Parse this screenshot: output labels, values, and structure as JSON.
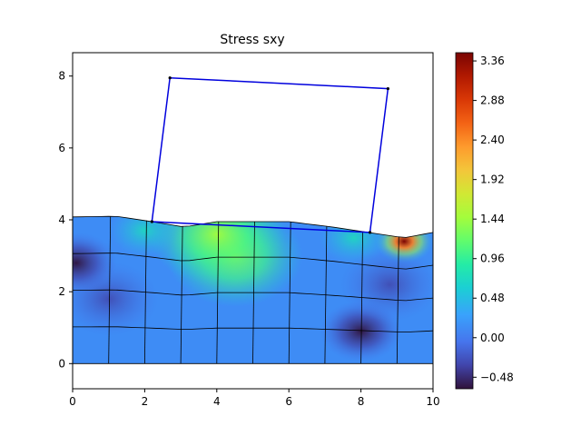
{
  "chart_data": {
    "type": "heatmap",
    "title": "Stress sxy",
    "xlabel": "",
    "ylabel": "",
    "xlim": [
      0,
      10
    ],
    "ylim": [
      -0.7,
      8.65
    ],
    "x_ticks": [
      0,
      2,
      4,
      6,
      8,
      10
    ],
    "y_ticks": [
      0,
      2,
      4,
      6,
      8
    ],
    "colorbar": {
      "min": -0.62,
      "max": 3.46,
      "ticks": [
        "3.36",
        "2.88",
        "2.40",
        "1.92",
        "1.44",
        "0.96",
        "0.48",
        "0.00",
        "−0.48"
      ],
      "tick_values": [
        3.36,
        2.88,
        2.4,
        1.92,
        1.44,
        0.96,
        0.48,
        0.0,
        -0.48
      ],
      "colormap": "turbo"
    },
    "indenter_polygon": [
      [
        2.7,
        7.95
      ],
      [
        8.75,
        7.65
      ],
      [
        8.25,
        3.65
      ],
      [
        2.2,
        3.95
      ]
    ],
    "mesh_columns_x": [
      0,
      1,
      2,
      3,
      4,
      5,
      6,
      7,
      8,
      9,
      10
    ],
    "mesh_rows_y": [
      0,
      1,
      2,
      3,
      4
    ],
    "surface_profile": [
      [
        0,
        4.08
      ],
      [
        1.2,
        4.1
      ],
      [
        2.2,
        3.95
      ],
      [
        3.1,
        3.8
      ],
      [
        4.0,
        3.95
      ],
      [
        5.0,
        3.95
      ],
      [
        6.0,
        3.95
      ],
      [
        7.2,
        3.8
      ],
      [
        8.2,
        3.65
      ],
      [
        9.2,
        3.5
      ],
      [
        10,
        3.65
      ]
    ],
    "stress_hotspots": [
      {
        "x": 4.5,
        "y": 3.0,
        "value": 1.0
      },
      {
        "x": 4.0,
        "y": 3.6,
        "value": 1.3
      },
      {
        "x": 2.0,
        "y": 3.7,
        "value": 0.3
      },
      {
        "x": 9.2,
        "y": 3.4,
        "value": 3.3
      },
      {
        "x": 7.8,
        "y": 3.5,
        "value": 0.8
      },
      {
        "x": 8.0,
        "y": 0.9,
        "value": -0.55
      },
      {
        "x": 1.0,
        "y": 1.8,
        "value": -0.3
      },
      {
        "x": 0.1,
        "y": 2.8,
        "value": -0.5
      },
      {
        "x": 8.8,
        "y": 2.2,
        "value": -0.2
      }
    ]
  }
}
